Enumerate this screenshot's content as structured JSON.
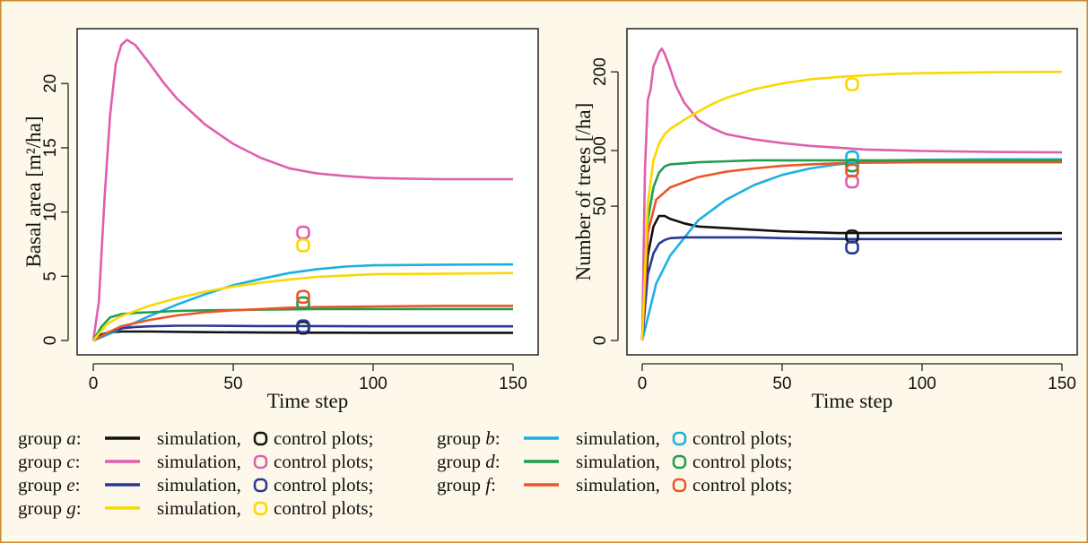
{
  "chart_data": [
    {
      "type": "line",
      "xlabel": "Time step",
      "ylabel": "Basal area [m²/ha]",
      "xlim": [
        0,
        150
      ],
      "ylim": [
        -0.9,
        24.5
      ],
      "x_ticks": [
        0,
        50,
        100,
        150
      ],
      "y_ticks": [
        0,
        5,
        10,
        15,
        20
      ],
      "y_scale": "linear",
      "grid": false,
      "series": [
        {
          "name": "group a",
          "color": "#111111",
          "kind": "simulation",
          "x": [
            0,
            2,
            5,
            10,
            20,
            40,
            60,
            80,
            100,
            125,
            150
          ],
          "y": [
            0,
            0.4,
            0.6,
            0.7,
            0.7,
            0.65,
            0.62,
            0.61,
            0.6,
            0.6,
            0.6
          ]
        },
        {
          "name": "group a",
          "color": "#111111",
          "kind": "control plots",
          "x": [
            75
          ],
          "y": [
            1.0
          ]
        },
        {
          "name": "group b",
          "color": "#1ab0e2",
          "kind": "simulation",
          "x": [
            0,
            10,
            20,
            30,
            40,
            50,
            60,
            70,
            80,
            90,
            100,
            125,
            150
          ],
          "y": [
            0,
            0.9,
            1.9,
            2.8,
            3.6,
            4.3,
            4.8,
            5.25,
            5.55,
            5.75,
            5.85,
            5.9,
            5.92
          ]
        },
        {
          "name": "group b",
          "color": "#1ab0e2",
          "kind": "control plots",
          "x": [],
          "y": []
        },
        {
          "name": "group c",
          "color": "#de5fae",
          "kind": "simulation",
          "x": [
            0,
            2,
            4,
            6,
            8,
            10,
            12,
            15,
            20,
            25,
            30,
            40,
            50,
            60,
            70,
            80,
            90,
            100,
            110,
            125,
            150
          ],
          "y": [
            0,
            3,
            11,
            17.5,
            21.5,
            23,
            23.4,
            23,
            21.6,
            20.1,
            18.8,
            16.8,
            15.3,
            14.2,
            13.4,
            13.0,
            12.8,
            12.65,
            12.6,
            12.55,
            12.55
          ]
        },
        {
          "name": "group c",
          "color": "#de5fae",
          "kind": "control plots",
          "x": [
            75
          ],
          "y": [
            8.4
          ]
        },
        {
          "name": "group d",
          "color": "#1f9e4e",
          "kind": "simulation",
          "x": [
            0,
            3,
            6,
            10,
            15,
            20,
            30,
            40,
            60,
            80,
            100,
            125,
            150
          ],
          "y": [
            0,
            1.1,
            1.8,
            2.05,
            2.15,
            2.2,
            2.3,
            2.35,
            2.4,
            2.45,
            2.45,
            2.45,
            2.45
          ]
        },
        {
          "name": "group d",
          "color": "#1f9e4e",
          "kind": "control plots",
          "x": [
            75
          ],
          "y": [
            2.9
          ]
        },
        {
          "name": "group e",
          "color": "#2a3894",
          "kind": "simulation",
          "x": [
            0,
            5,
            10,
            15,
            20,
            30,
            40,
            60,
            80,
            100,
            125,
            150
          ],
          "y": [
            0,
            0.6,
            0.95,
            1.05,
            1.1,
            1.15,
            1.15,
            1.12,
            1.12,
            1.1,
            1.1,
            1.1
          ]
        },
        {
          "name": "group e",
          "color": "#2a3894",
          "kind": "control plots",
          "x": [
            75
          ],
          "y": [
            1.1
          ]
        },
        {
          "name": "group f",
          "color": "#ea5627",
          "kind": "simulation",
          "x": [
            0,
            5,
            10,
            20,
            30,
            40,
            50,
            60,
            70,
            80,
            100,
            125,
            150
          ],
          "y": [
            0,
            0.6,
            1.1,
            1.6,
            1.95,
            2.2,
            2.35,
            2.45,
            2.55,
            2.6,
            2.65,
            2.7,
            2.7
          ]
        },
        {
          "name": "group f",
          "color": "#ea5627",
          "kind": "control plots",
          "x": [
            75
          ],
          "y": [
            3.4
          ]
        },
        {
          "name": "group g",
          "color": "#fad800",
          "kind": "simulation",
          "x": [
            0,
            5,
            10,
            20,
            30,
            40,
            50,
            60,
            70,
            80,
            90,
            100,
            125,
            150
          ],
          "y": [
            0,
            1.3,
            1.9,
            2.7,
            3.3,
            3.8,
            4.2,
            4.5,
            4.75,
            4.95,
            5.05,
            5.15,
            5.2,
            5.25
          ]
        },
        {
          "name": "group g",
          "color": "#fad800",
          "kind": "control plots",
          "x": [
            75
          ],
          "y": [
            7.4
          ]
        }
      ]
    },
    {
      "type": "line",
      "xlabel": "Time step",
      "ylabel": "Number of trees [/ha]",
      "xlim": [
        0,
        150
      ],
      "ylim": [
        -9,
        248
      ],
      "x_ticks": [
        0,
        50,
        100,
        150
      ],
      "y_ticks": [
        0,
        50,
        100,
        200
      ],
      "y_scale": "nonlinear (square-root-like)",
      "grid": false,
      "series": [
        {
          "name": "group a",
          "color": "#111111",
          "kind": "simulation",
          "x": [
            0,
            2,
            4,
            6,
            8,
            10,
            15,
            20,
            30,
            40,
            50,
            70,
            100,
            125,
            150
          ],
          "y": [
            0,
            20,
            36,
            43,
            43,
            41,
            38,
            36,
            35,
            34,
            33,
            32,
            32,
            32,
            32
          ]
        },
        {
          "name": "group a",
          "color": "#111111",
          "kind": "control plots",
          "x": [
            75
          ],
          "y": [
            30
          ]
        },
        {
          "name": "group b",
          "color": "#1ab0e2",
          "kind": "simulation",
          "x": [
            0,
            5,
            10,
            20,
            30,
            40,
            50,
            60,
            70,
            80,
            90,
            100,
            125,
            150
          ],
          "y": [
            0,
            9,
            20,
            40,
            55,
            67,
            76,
            82,
            86,
            88.5,
            90,
            90.5,
            91,
            91
          ]
        },
        {
          "name": "group b",
          "color": "#1ab0e2",
          "kind": "control plots",
          "x": [
            75
          ],
          "y": [
            93
          ]
        },
        {
          "name": "group c",
          "color": "#de5fae",
          "kind": "simulation",
          "x": [
            0,
            1,
            2,
            3,
            4,
            5,
            6,
            7,
            8,
            10,
            12,
            15,
            20,
            25,
            30,
            40,
            50,
            60,
            70,
            80,
            100,
            125,
            150
          ],
          "y": [
            0,
            82,
            160,
            175,
            208,
            218,
            230,
            236,
            228,
            205,
            180,
            157,
            135,
            125,
            118,
            112,
            108,
            105,
            103,
            101,
            99.5,
            98.5,
            98
          ]
        },
        {
          "name": "group c",
          "color": "#de5fae",
          "kind": "control plots",
          "x": [
            75
          ],
          "y": [
            70
          ]
        },
        {
          "name": "group d",
          "color": "#1f9e4e",
          "kind": "simulation",
          "x": [
            0,
            2,
            4,
            6,
            8,
            10,
            15,
            20,
            30,
            40,
            50,
            75,
            100,
            125,
            150
          ],
          "y": [
            0,
            40,
            65,
            78,
            84,
            86,
            87,
            88,
            89,
            90,
            90,
            90,
            90,
            90,
            90
          ]
        },
        {
          "name": "group d",
          "color": "#1f9e4e",
          "kind": "control plots",
          "x": [
            75
          ],
          "y": [
            85
          ]
        },
        {
          "name": "group e",
          "color": "#2a3894",
          "kind": "simulation",
          "x": [
            0,
            2,
            4,
            6,
            8,
            10,
            15,
            20,
            30,
            40,
            50,
            75,
            100,
            125,
            150
          ],
          "y": [
            0,
            12,
            21,
            26,
            28,
            29,
            29.5,
            29.5,
            29.5,
            29.5,
            29,
            28.5,
            28.5,
            28.5,
            28.5
          ]
        },
        {
          "name": "group e",
          "color": "#2a3894",
          "kind": "control plots",
          "x": [
            75
          ],
          "y": [
            24
          ]
        },
        {
          "name": "group f",
          "color": "#ea5627",
          "kind": "simulation",
          "x": [
            0,
            2,
            5,
            10,
            20,
            30,
            40,
            50,
            60,
            75,
            100,
            125,
            150
          ],
          "y": [
            0,
            32,
            55,
            65,
            74,
            79,
            82,
            84.5,
            86,
            87.5,
            88,
            88,
            88
          ]
        },
        {
          "name": "group f",
          "color": "#ea5627",
          "kind": "control plots",
          "x": [
            75
          ],
          "y": [
            80
          ]
        },
        {
          "name": "group g",
          "color": "#fad800",
          "kind": "simulation",
          "x": [
            0,
            2,
            4,
            6,
            8,
            10,
            15,
            20,
            25,
            30,
            40,
            50,
            60,
            70,
            80,
            90,
            100,
            125,
            150
          ],
          "y": [
            0,
            52,
            90,
            107,
            118,
            124,
            135,
            145,
            155,
            163,
            175,
            183,
            189,
            192.5,
            195,
            197,
            198,
            199.5,
            200
          ]
        },
        {
          "name": "group g",
          "color": "#fad800",
          "kind": "control plots",
          "x": [
            75
          ],
          "y": [
            182
          ]
        }
      ]
    }
  ],
  "legend": {
    "simulation_label": "simulation,",
    "control_label": "control plots;",
    "group_word": "group",
    "rows": [
      [
        {
          "letter": "a",
          "color": "#111111"
        },
        {
          "letter": "b",
          "color": "#1ab0e2"
        }
      ],
      [
        {
          "letter": "c",
          "color": "#de5fae"
        },
        {
          "letter": "d",
          "color": "#1f9e4e"
        }
      ],
      [
        {
          "letter": "e",
          "color": "#2a3894"
        },
        {
          "letter": "f",
          "color": "#ea5627"
        }
      ],
      [
        {
          "letter": "g",
          "color": "#fad800"
        }
      ]
    ]
  },
  "colors": {
    "background": "#fdf8e9",
    "border": "#cc8a2e",
    "plot_bg": "#ffffff"
  }
}
